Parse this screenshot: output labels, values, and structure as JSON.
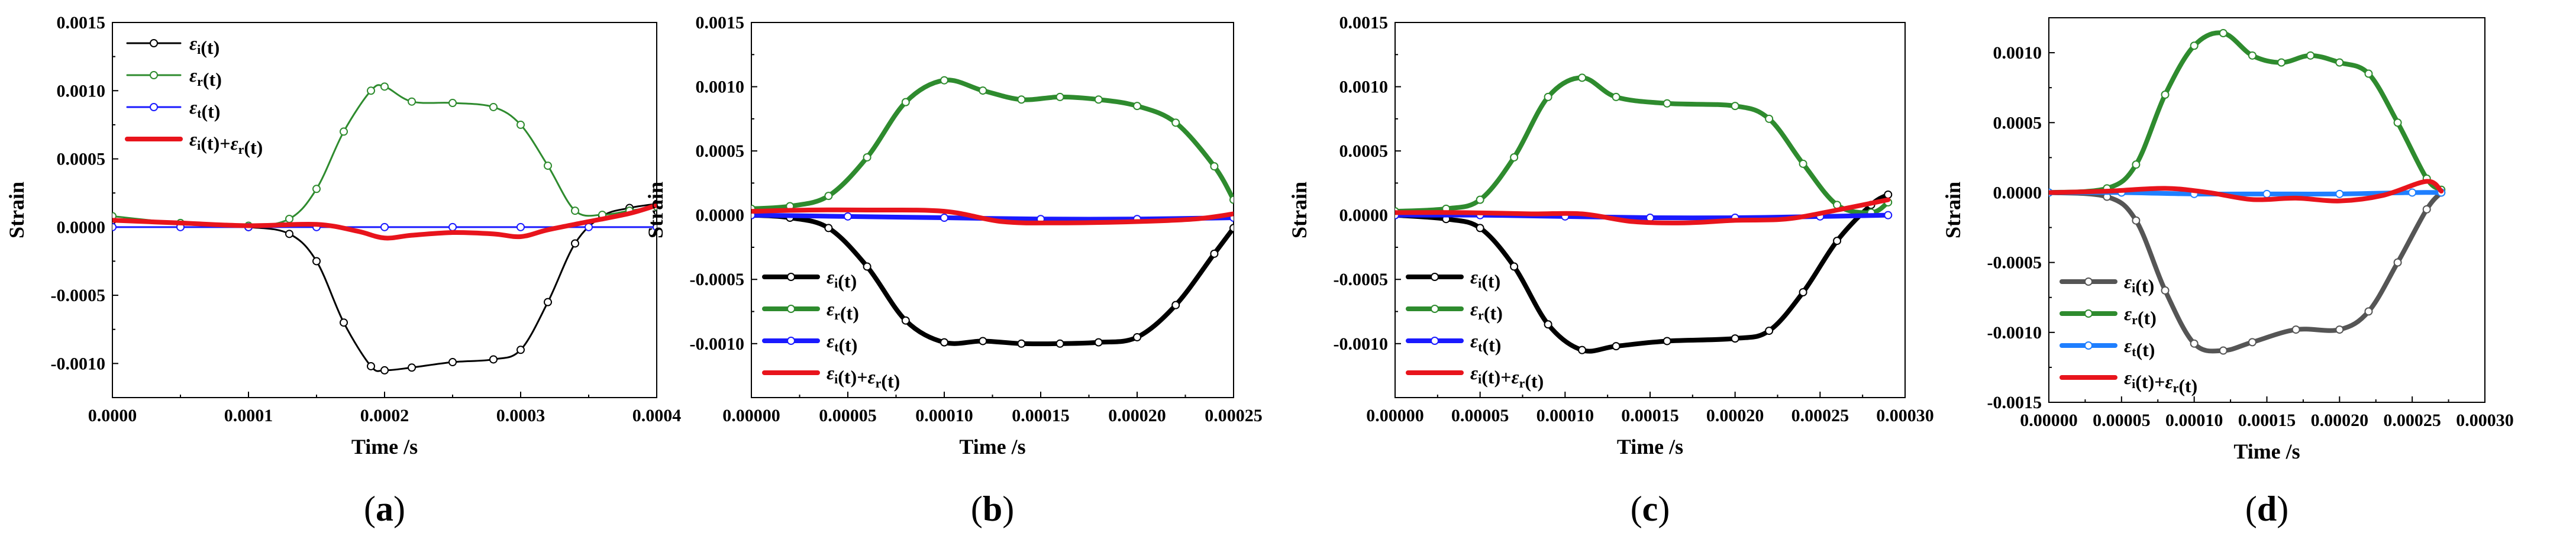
{
  "chart_data": [
    {
      "id": "a",
      "type": "line",
      "panel_label": "(a)",
      "xlabel": "Time /s",
      "ylabel": "Strain",
      "xlim": [
        0,
        0.0004
      ],
      "ylim": [
        -0.00125,
        0.0015
      ],
      "xticks": [
        "0.0000",
        "0.0001",
        "0.0002",
        "0.0003",
        "0.0004"
      ],
      "yticks": [
        "-0.0010",
        "-0.0005",
        "0.0000",
        "0.0005",
        "0.0010",
        "0.0015"
      ],
      "legend_position": "top-left",
      "series": [
        {
          "name": "εi(t)",
          "label_main": "ε",
          "label_sub": "i",
          "label_rest": "(t)",
          "color": "#000000",
          "marker": true,
          "x": [
            0,
            5e-05,
            0.0001,
            0.00013,
            0.00015,
            0.00017,
            0.00019,
            0.0002,
            0.00022,
            0.00025,
            0.00028,
            0.0003,
            0.00032,
            0.00034,
            0.00036,
            0.00038,
            0.0004
          ],
          "y": [
            5e-05,
            2e-05,
            0,
            -5e-05,
            -0.00025,
            -0.0007,
            -0.00102,
            -0.00105,
            -0.00103,
            -0.00099,
            -0.00097,
            -0.0009,
            -0.00055,
            -0.00012,
            8e-05,
            0.00014,
            0.00017
          ]
        },
        {
          "name": "εr(t)",
          "label_main": "ε",
          "label_sub": "r",
          "label_rest": "(t)",
          "color": "#2e8b2e",
          "marker": true,
          "x": [
            0,
            5e-05,
            0.0001,
            0.00013,
            0.00015,
            0.00017,
            0.00019,
            0.0002,
            0.00022,
            0.00025,
            0.00028,
            0.0003,
            0.00032,
            0.00034,
            0.00036,
            0.00038,
            0.0004
          ],
          "y": [
            8e-05,
            3e-05,
            1e-05,
            6e-05,
            0.00028,
            0.0007,
            0.001,
            0.00103,
            0.00092,
            0.00091,
            0.00088,
            0.00075,
            0.00045,
            0.00012,
            9e-05,
            0.00012,
            0.00015
          ]
        },
        {
          "name": "εt(t)",
          "label_main": "ε",
          "label_sub": "t",
          "label_rest": "(t)",
          "color": "#1a1aff",
          "marker": true,
          "x": [
            0,
            5e-05,
            0.0001,
            0.00015,
            0.0002,
            0.00025,
            0.0003,
            0.00035,
            0.0004
          ],
          "y": [
            0,
            0,
            0,
            0,
            0,
            0,
            0,
            0,
            0
          ]
        },
        {
          "name": "εi(t)+εr(t)",
          "label_main": "ε",
          "label_sub": "i",
          "label_rest": "(t)+",
          "label_main2": "ε",
          "label_sub2": "r",
          "label_rest2": "(t)",
          "color": "#e8141c",
          "marker": false,
          "x": [
            0,
            5e-05,
            0.0001,
            0.00015,
            0.00018,
            0.0002,
            0.00022,
            0.00025,
            0.00028,
            0.0003,
            0.00032,
            0.00035,
            0.00038,
            0.0004
          ],
          "y": [
            5e-05,
            3e-05,
            1e-05,
            2e-05,
            -3e-05,
            -8e-05,
            -6e-05,
            -4e-05,
            -5e-05,
            -7e-05,
            -2e-05,
            4e-05,
            0.0001,
            0.00016
          ]
        }
      ]
    },
    {
      "id": "b",
      "type": "line",
      "panel_label": "(b)",
      "xlabel": "Time /s",
      "ylabel": "Strain",
      "xlim": [
        0,
        0.00025
      ],
      "ylim": [
        -0.00142,
        0.0015
      ],
      "xticks": [
        "0.00000",
        "0.00005",
        "0.00010",
        "0.00015",
        "0.00020",
        "0.00025"
      ],
      "yticks": [
        "-0.0010",
        "-0.0005",
        "0.0000",
        "0.0005",
        "0.0010",
        "0.0015"
      ],
      "legend_position": "bottom-left",
      "series": [
        {
          "name": "εi(t)",
          "label_main": "ε",
          "label_sub": "i",
          "label_rest": "(t)",
          "color": "#000000",
          "marker": true,
          "x": [
            0,
            2e-05,
            4e-05,
            6e-05,
            8e-05,
            0.0001,
            0.00012,
            0.00014,
            0.00016,
            0.00018,
            0.0002,
            0.00022,
            0.00024,
            0.00025
          ],
          "y": [
            0,
            -2e-05,
            -0.0001,
            -0.0004,
            -0.00082,
            -0.00099,
            -0.00098,
            -0.001,
            -0.001,
            -0.00099,
            -0.00095,
            -0.0007,
            -0.0003,
            -0.0001
          ]
        },
        {
          "name": "εr(t)",
          "label_main": "ε",
          "label_sub": "r",
          "label_rest": "(t)",
          "color": "#2e8b2e",
          "marker": true,
          "x": [
            0,
            2e-05,
            4e-05,
            6e-05,
            8e-05,
            0.0001,
            0.00012,
            0.00014,
            0.00016,
            0.00018,
            0.0002,
            0.00022,
            0.00024,
            0.00025
          ],
          "y": [
            5e-05,
            7e-05,
            0.00015,
            0.00045,
            0.00088,
            0.00105,
            0.00097,
            0.0009,
            0.00092,
            0.0009,
            0.00085,
            0.00072,
            0.00038,
            0.00012
          ]
        },
        {
          "name": "εt(t)",
          "label_main": "ε",
          "label_sub": "t",
          "label_rest": "(t)",
          "color": "#1a1aff",
          "marker": true,
          "x": [
            0,
            5e-05,
            0.0001,
            0.00015,
            0.0002,
            0.00025
          ],
          "y": [
            0,
            -1e-05,
            -2e-05,
            -3e-05,
            -3e-05,
            -2e-05
          ]
        },
        {
          "name": "εi(t)+εr(t)",
          "label_main": "ε",
          "label_sub": "i",
          "label_rest": "(t)+",
          "label_main2": "ε",
          "label_sub2": "r",
          "label_rest2": "(t)",
          "color": "#e8141c",
          "marker": false,
          "x": [
            0,
            3e-05,
            6e-05,
            0.0001,
            0.00013,
            0.00016,
            0.0002,
            0.00023,
            0.00025
          ],
          "y": [
            3e-05,
            4e-05,
            4e-05,
            3e-05,
            -5e-05,
            -6e-05,
            -5e-05,
            -3e-05,
            1e-05
          ]
        }
      ]
    },
    {
      "id": "c",
      "type": "line",
      "panel_label": "(c)",
      "xlabel": "Time /s",
      "ylabel": "Strain",
      "xlim": [
        0,
        0.0003
      ],
      "ylim": [
        -0.00142,
        0.0015
      ],
      "xticks": [
        "0.00000",
        "0.00005",
        "0.00010",
        "0.00015",
        "0.00020",
        "0.00025",
        "0.00030"
      ],
      "yticks": [
        "-0.0010",
        "-0.0005",
        "0.0000",
        "0.0005",
        "0.0010",
        "0.0015"
      ],
      "legend_position": "bottom-left",
      "series": [
        {
          "name": "εi(t)",
          "label_main": "ε",
          "label_sub": "i",
          "label_rest": "(t)",
          "color": "#000000",
          "marker": true,
          "x": [
            0,
            3e-05,
            5e-05,
            7e-05,
            9e-05,
            0.00011,
            0.00013,
            0.00016,
            0.0002,
            0.00022,
            0.00024,
            0.00026,
            0.00028,
            0.00029
          ],
          "y": [
            0,
            -3e-05,
            -0.0001,
            -0.0004,
            -0.00085,
            -0.00105,
            -0.00102,
            -0.00098,
            -0.00096,
            -0.0009,
            -0.0006,
            -0.0002,
            8e-05,
            0.00016
          ]
        },
        {
          "name": "εr(t)",
          "label_main": "ε",
          "label_sub": "r",
          "label_rest": "(t)",
          "color": "#2e8b2e",
          "marker": true,
          "x": [
            0,
            3e-05,
            5e-05,
            7e-05,
            9e-05,
            0.00011,
            0.00013,
            0.00016,
            0.0002,
            0.00022,
            0.00024,
            0.00026,
            0.00028,
            0.00029
          ],
          "y": [
            3e-05,
            5e-05,
            0.00012,
            0.00045,
            0.00092,
            0.00107,
            0.00092,
            0.00087,
            0.00085,
            0.00075,
            0.0004,
            8e-05,
            2e-05,
            0.0001
          ]
        },
        {
          "name": "εt(t)",
          "label_main": "ε",
          "label_sub": "t",
          "label_rest": "(t)",
          "color": "#1a1aff",
          "marker": true,
          "x": [
            0,
            5e-05,
            0.0001,
            0.00015,
            0.0002,
            0.00025,
            0.00029
          ],
          "y": [
            0,
            0,
            -1e-05,
            -2e-05,
            -2e-05,
            -1e-05,
            0
          ]
        },
        {
          "name": "εi(t)+εr(t)",
          "label_main": "ε",
          "label_sub": "i",
          "label_rest": "(t)+",
          "label_main2": "ε",
          "label_sub2": "r",
          "label_rest2": "(t)",
          "color": "#e8141c",
          "marker": false,
          "x": [
            0,
            4e-05,
            8e-05,
            0.00011,
            0.00014,
            0.00017,
            0.0002,
            0.00023,
            0.00026,
            0.00029
          ],
          "y": [
            2e-05,
            2e-05,
            1e-05,
            1e-05,
            -5e-05,
            -6e-05,
            -4e-05,
            -3e-05,
            4e-05,
            0.00012
          ]
        }
      ]
    },
    {
      "id": "d",
      "type": "line",
      "panel_label": "(d)",
      "xlabel": "Time /s",
      "ylabel": "Strain",
      "xlim": [
        0,
        0.0003
      ],
      "ylim": [
        -0.0015,
        0.00125
      ],
      "xticks": [
        "0.00000",
        "0.00005",
        "0.00010",
        "0.00015",
        "0.00020",
        "0.00025",
        "0.00030"
      ],
      "yticks": [
        "-0.0015",
        "-0.0010",
        "-0.0005",
        "0.0000",
        "0.0005",
        "0.0010"
      ],
      "legend_position": "bottom-left",
      "series": [
        {
          "name": "εi(t)",
          "label_main": "ε",
          "label_sub": "i",
          "label_rest": "(t)",
          "color": "#555555",
          "marker": true,
          "x": [
            0,
            4e-05,
            6e-05,
            8e-05,
            0.0001,
            0.00012,
            0.00014,
            0.00017,
            0.0002,
            0.00022,
            0.00024,
            0.00026,
            0.00027
          ],
          "y": [
            0,
            -3e-05,
            -0.0002,
            -0.0007,
            -0.00108,
            -0.00113,
            -0.00107,
            -0.00098,
            -0.00098,
            -0.00085,
            -0.0005,
            -0.00012,
            0
          ]
        },
        {
          "name": "εr(t)",
          "label_main": "ε",
          "label_sub": "r",
          "label_rest": "(t)",
          "color": "#2e8b2e",
          "marker": true,
          "x": [
            0,
            4e-05,
            6e-05,
            8e-05,
            0.0001,
            0.00012,
            0.00014,
            0.00016,
            0.00018,
            0.0002,
            0.00022,
            0.00024,
            0.00026,
            0.00027
          ],
          "y": [
            0,
            3e-05,
            0.0002,
            0.0007,
            0.00105,
            0.00114,
            0.00098,
            0.00093,
            0.00098,
            0.00093,
            0.00085,
            0.0005,
            0.0001,
            2e-05
          ]
        },
        {
          "name": "εt(t)",
          "label_main": "ε",
          "label_sub": "t",
          "label_rest": "(t)",
          "color": "#1f7fff",
          "marker": true,
          "x": [
            0,
            5e-05,
            0.0001,
            0.00015,
            0.0002,
            0.00025,
            0.00027
          ],
          "y": [
            0,
            0,
            -1e-05,
            -1e-05,
            -1e-05,
            0,
            0
          ]
        },
        {
          "name": "εi(t)+εr(t)",
          "label_main": "ε",
          "label_sub": "i",
          "label_rest": "(t)+",
          "label_main2": "ε",
          "label_sub2": "r",
          "label_rest2": "(t)",
          "color": "#e8141c",
          "marker": false,
          "x": [
            0,
            4e-05,
            8e-05,
            0.00011,
            0.00014,
            0.00017,
            0.0002,
            0.00023,
            0.00026,
            0.00027
          ],
          "y": [
            0,
            1e-05,
            3e-05,
            0,
            -5e-05,
            -4e-05,
            -6e-05,
            -2e-05,
            8e-05,
            1e-05
          ]
        }
      ]
    }
  ]
}
